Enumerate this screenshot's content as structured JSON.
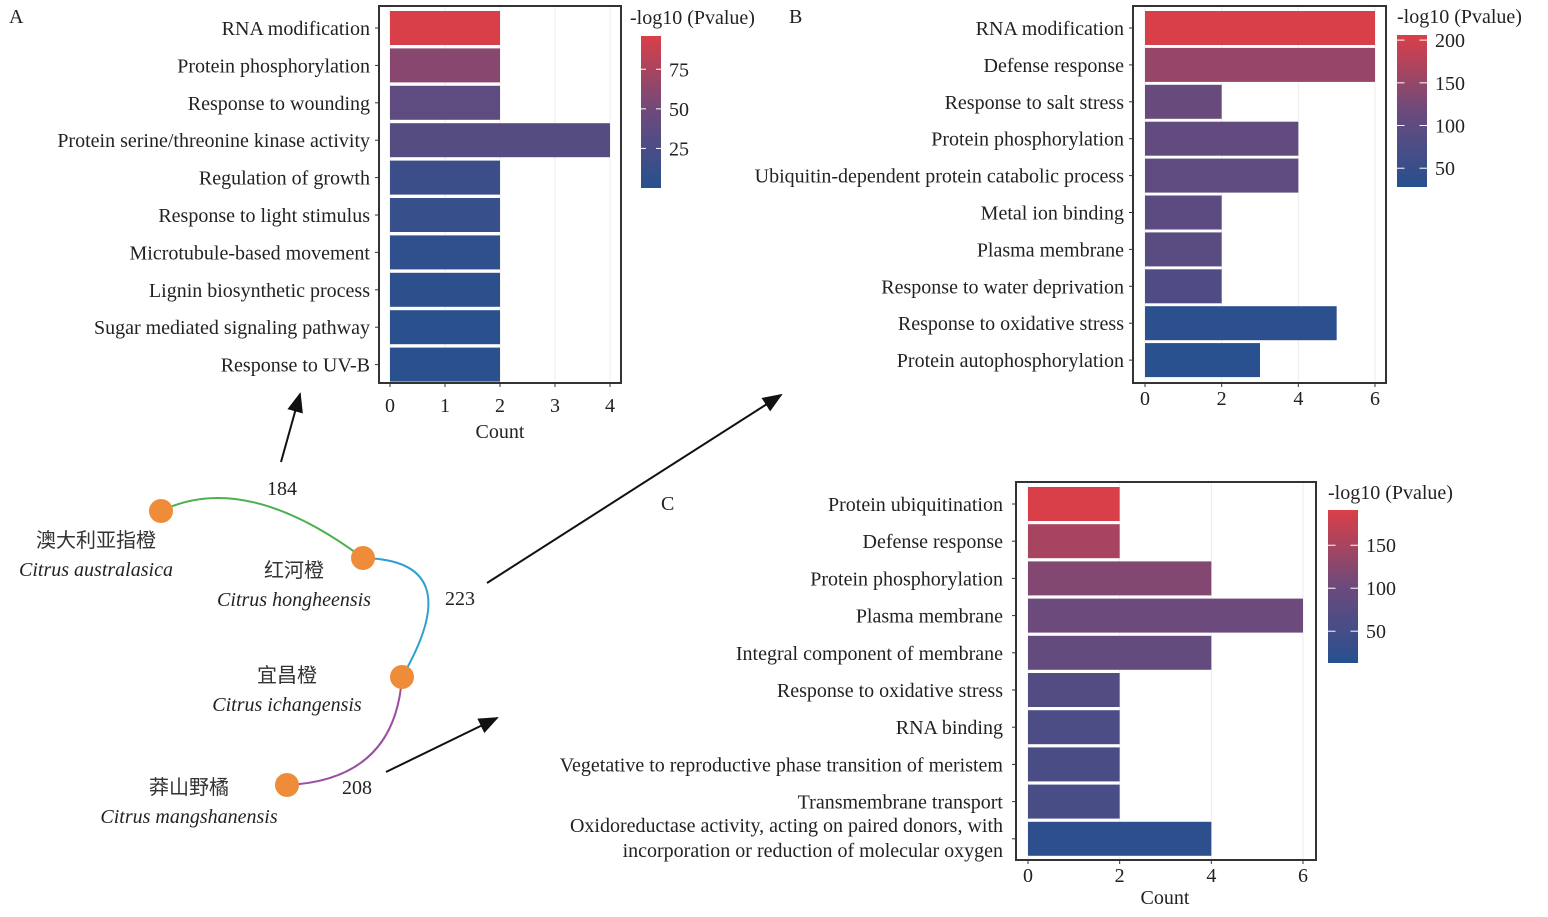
{
  "panel_letters": {
    "a": "A",
    "b": "B",
    "c": "C"
  },
  "network": {
    "species": [
      {
        "cn": "澳大利亚指橙",
        "latin": "Citrus australasica"
      },
      {
        "cn": "红河橙",
        "latin": "Citrus hongheensis"
      },
      {
        "cn": "宜昌橙",
        "latin": "Citrus ichangensis"
      },
      {
        "cn": "莽山野橘",
        "latin": "Citrus mangshanensis"
      }
    ],
    "links": [
      {
        "from": 0,
        "to": 1,
        "value": "184",
        "color": "#4caf50"
      },
      {
        "from": 1,
        "to": 2,
        "value": "223",
        "color": "#2e9fd0"
      },
      {
        "from": 2,
        "to": 3,
        "value": "208",
        "color": "#9b4fa5"
      }
    ],
    "node_color": "#ef8c3a"
  },
  "colors": {
    "low": "#27508f",
    "mid": "#6c4a7c",
    "high": "#da3f48"
  },
  "chart_data": [
    {
      "type": "bar",
      "panel": "A",
      "orientation": "horizontal",
      "xlabel": "Count",
      "xlim": [
        0,
        4
      ],
      "xticks": [
        "0",
        "1",
        "2",
        "3",
        "4"
      ],
      "categories": [
        "RNA modification",
        "Protein phosphorylation",
        "Response to wounding",
        "Protein serine/threonine kinase activity",
        "Regulation of growth",
        "Response to light stimulus",
        "Microtubule-based movement",
        "Lignin biosynthetic process",
        "Sugar mediated signaling pathway",
        "Response to UV-B"
      ],
      "values": [
        2,
        2,
        2,
        4,
        2,
        2,
        2,
        2,
        2,
        2
      ],
      "color_values": [
        95,
        60,
        38,
        32,
        14,
        11,
        6,
        4,
        3,
        2
      ],
      "legend": {
        "title": "-log10 (Pvalue)",
        "ticks": [
          "25",
          "50",
          "75"
        ],
        "tick_values": [
          25,
          50,
          75
        ],
        "range": [
          0,
          96
        ]
      }
    },
    {
      "type": "bar",
      "panel": "B",
      "orientation": "horizontal",
      "xlabel": "",
      "xlim": [
        0,
        6
      ],
      "xticks": [
        "0",
        "2",
        "4",
        "6"
      ],
      "categories": [
        "RNA modification",
        "Defense response",
        "Response to salt stress",
        "Protein phosphorylation",
        "Ubiquitin-dependent protein catabolic process",
        "Metal ion binding",
        "Plasma membrane",
        "Response to water deprivation",
        "Response to oxidative stress",
        "Protein autophosphorylation"
      ],
      "values": [
        6,
        6,
        2,
        4,
        4,
        2,
        2,
        2,
        5,
        3
      ],
      "color_values": [
        205,
        150,
        112,
        104,
        100,
        95,
        92,
        80,
        35,
        30
      ],
      "legend": {
        "title": "-log10 (Pvalue)",
        "ticks": [
          "50",
          "100",
          "150",
          "200"
        ],
        "tick_values": [
          50,
          100,
          150,
          200
        ],
        "range": [
          28,
          206
        ]
      }
    },
    {
      "type": "bar",
      "panel": "C",
      "orientation": "horizontal",
      "xlabel": "Count",
      "xlim": [
        0,
        6
      ],
      "xticks": [
        "0",
        "2",
        "4",
        "6"
      ],
      "categories": [
        "Protein ubiquitination",
        "Defense response",
        "Protein phosphorylation",
        "Plasma membrane",
        "Integral component of membrane",
        "Response to oxidative stress",
        "RNA binding",
        "Vegetative to reproductive phase transition of meristem",
        "Transmembrane transport",
        "Oxidoreductase activity, acting on paired donors, with\nincorporation or reduction of molecular oxygen"
      ],
      "values": [
        2,
        2,
        4,
        6,
        4,
        2,
        2,
        2,
        2,
        4
      ],
      "color_values": [
        190,
        150,
        120,
        102,
        92,
        70,
        62,
        58,
        55,
        22
      ],
      "legend": {
        "title": "-log10 (Pvalue)",
        "ticks": [
          "50",
          "100",
          "150"
        ],
        "tick_values": [
          50,
          100,
          150
        ],
        "range": [
          13,
          191
        ]
      }
    }
  ]
}
